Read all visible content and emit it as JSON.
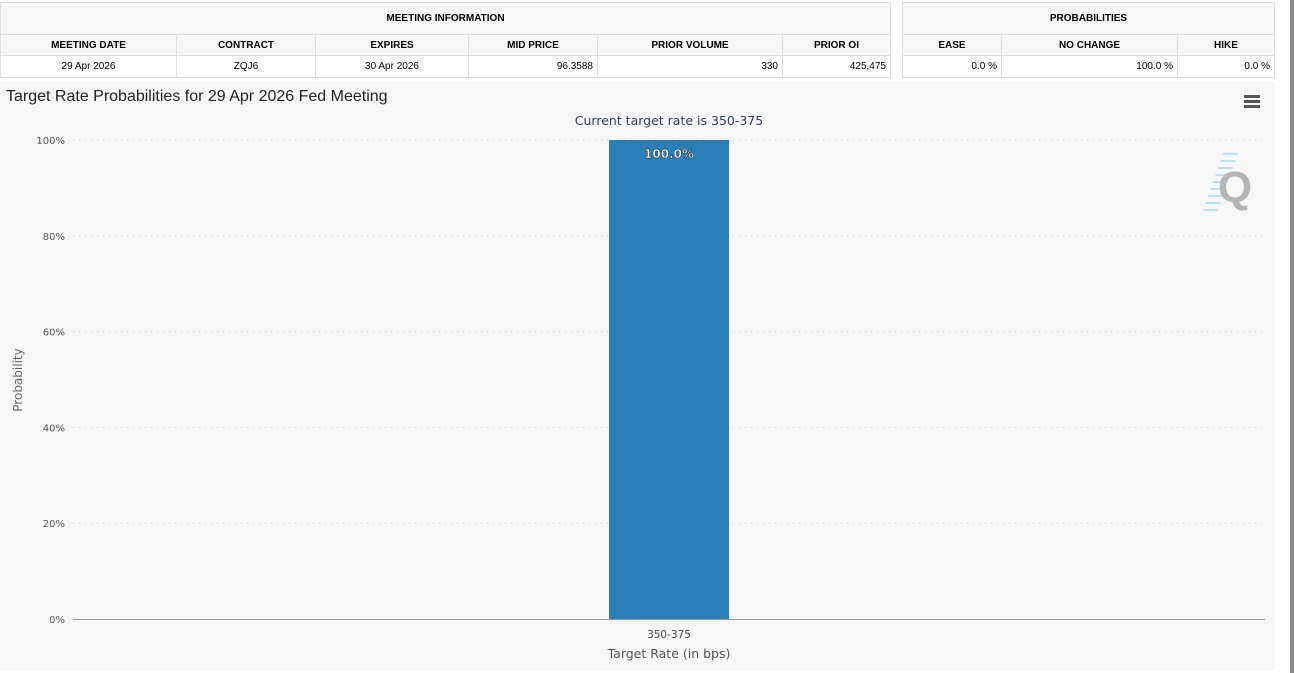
{
  "meeting_info": {
    "title": "MEETING INFORMATION",
    "headers": [
      "MEETING DATE",
      "CONTRACT",
      "EXPIRES",
      "MID PRICE",
      "PRIOR VOLUME",
      "PRIOR OI"
    ],
    "values": [
      "29 Apr 2026",
      "ZQJ6",
      "30 Apr 2026",
      "96.3588",
      "330",
      "425,475"
    ]
  },
  "probabilities": {
    "title": "PROBABILITIES",
    "headers": [
      "EASE",
      "NO CHANGE",
      "HIKE"
    ],
    "values": [
      "0.0 %",
      "100.0 %",
      "0.0 %"
    ]
  },
  "chart_data": {
    "type": "bar",
    "title": "Target Rate Probabilities for 29 Apr 2026 Fed Meeting",
    "subtitle": "Current target rate is 350-375",
    "categories": [
      "350-375"
    ],
    "values": [
      100.0
    ],
    "data_labels": [
      "100.0%"
    ],
    "xlabel": "Target Rate (in bps)",
    "ylabel": "Probability",
    "ylim": [
      0,
      100
    ],
    "yticks": [
      "0%",
      "20%",
      "40%",
      "60%",
      "80%",
      "100%"
    ],
    "grid": true,
    "bar_color": "#2a7fb8"
  },
  "watermark": "Q"
}
